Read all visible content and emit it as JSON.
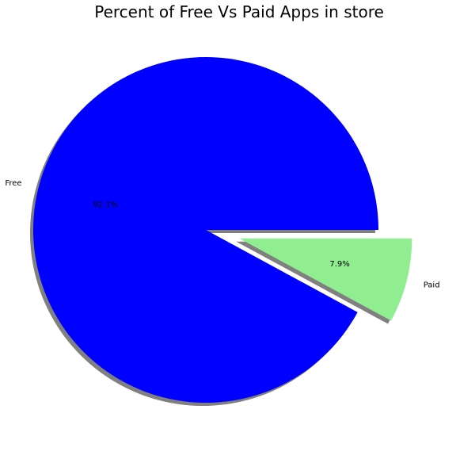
{
  "chart_data": {
    "type": "pie",
    "title": "Percent of Free Vs Paid Apps in store",
    "slices": [
      {
        "label": "Free",
        "value": 92.1,
        "pct_label": "92.1%",
        "color": "#0000ff",
        "explode": 0.0
      },
      {
        "label": "Paid",
        "value": 7.9,
        "pct_label": "7.9%",
        "color": "#90ee90",
        "explode": 0.2
      }
    ],
    "start_angle_deg": 0,
    "direction": "counterclockwise",
    "shadow": true,
    "shadow_color": "#808080"
  }
}
